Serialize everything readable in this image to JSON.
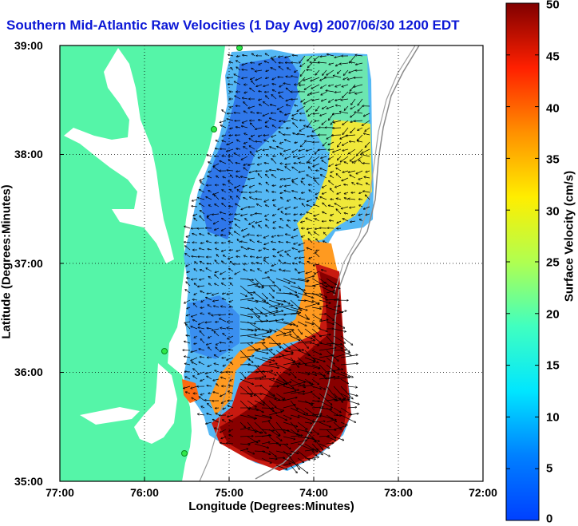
{
  "title": "Southern Mid-Atlantic Raw Velocities (1 Day Avg) 2007/06/30 1200 EDT",
  "xaxis": {
    "label": "Longitude (Degrees:Minutes)",
    "ticks": [
      "77:00",
      "76:00",
      "75:00",
      "74:00",
      "73:00",
      "72:00"
    ]
  },
  "yaxis": {
    "label": "Latitude (Degrees:Minutes)",
    "ticks": [
      "39:00",
      "38:00",
      "37:00",
      "36:00",
      "35:00"
    ]
  },
  "colorbar": {
    "label": "Surface Velocity (cm/s)",
    "ticks": [
      "50",
      "45",
      "40",
      "35",
      "30",
      "25",
      "20",
      "15",
      "10",
      "5",
      "0"
    ],
    "range": [
      0,
      50
    ],
    "colormap": "jet"
  },
  "map": {
    "grid": true,
    "land_color": "#55f5a8",
    "extent_lon": [
      -77,
      -72
    ],
    "extent_lat": [
      35,
      39
    ]
  }
}
